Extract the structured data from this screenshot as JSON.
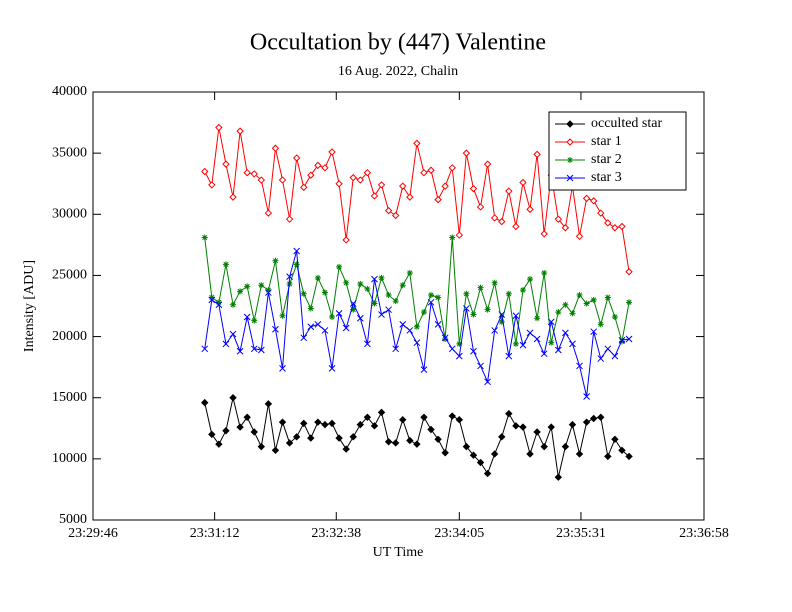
{
  "chart_data": {
    "type": "line",
    "title": "Occultation by (447) Valentine",
    "subtitle": "16 Aug. 2022, Chalin",
    "x_label": "UT Time",
    "y_label": "Intensity [ADU]",
    "x": [
      84665,
      84670,
      84675,
      84680,
      84685,
      84690,
      84695,
      84700,
      84705,
      84710,
      84715,
      84720,
      84725,
      84730,
      84735,
      84740,
      84745,
      84750,
      84755,
      84760,
      84765,
      84770,
      84775,
      84780,
      84785,
      84790,
      84795,
      84800,
      84805,
      84810,
      84815,
      84820,
      84825,
      84830,
      84835,
      84840,
      84845,
      84850,
      84855,
      84860,
      84865,
      84870,
      84875,
      84880,
      84885,
      84890,
      84895,
      84900,
      84905,
      84910,
      84915,
      84920,
      84925,
      84930,
      84935,
      84940,
      84945,
      84950,
      84955,
      84960,
      84965
    ],
    "xlim": [
      84586,
      85018
    ],
    "xticks": [
      {
        "value": 84586,
        "label": "23:29:46"
      },
      {
        "value": 84672,
        "label": "23:31:12"
      },
      {
        "value": 84758,
        "label": "23:32:38"
      },
      {
        "value": 84845,
        "label": "23:34:05"
      },
      {
        "value": 84931,
        "label": "23:35:31"
      },
      {
        "value": 85018,
        "label": "23:36:58"
      }
    ],
    "ylim": [
      5000,
      40000
    ],
    "yticks": [
      5000,
      10000,
      15000,
      20000,
      25000,
      30000,
      35000,
      40000
    ],
    "legend": "upper right",
    "series": [
      {
        "name": "occulted star",
        "color": "#000000",
        "marker": "filled-diamond",
        "values": [
          14600,
          12000,
          11200,
          12300,
          15000,
          12600,
          13400,
          12200,
          11000,
          14500,
          10700,
          13000,
          11300,
          11800,
          12900,
          11700,
          13000,
          12800,
          12900,
          11700,
          10800,
          11800,
          12800,
          13400,
          12700,
          13800,
          11400,
          11300,
          13200,
          11500,
          11200,
          13400,
          12400,
          11600,
          10500,
          13500,
          13200,
          11000,
          10300,
          9700,
          8800,
          10400,
          11800,
          13700,
          12700,
          12600,
          10400,
          12200,
          11000,
          12600,
          8500,
          11000,
          12800,
          10400,
          13000,
          13300,
          13400,
          10200,
          11600,
          10700,
          10200
        ]
      },
      {
        "name": "star 1",
        "color": "#ff0000",
        "marker": "open-diamond",
        "values": [
          33500,
          32400,
          37100,
          34100,
          31400,
          36800,
          33400,
          33300,
          32800,
          30100,
          35400,
          32800,
          29600,
          34600,
          32200,
          33200,
          34000,
          33800,
          35100,
          32500,
          27900,
          33000,
          32800,
          33400,
          31500,
          32400,
          30300,
          29900,
          32300,
          31400,
          35800,
          33400,
          33600,
          31200,
          32300,
          33800,
          28300,
          35000,
          32100,
          30600,
          34100,
          29700,
          29400,
          31900,
          29000,
          32600,
          30400,
          34900,
          28400,
          33200,
          29600,
          28900,
          32300,
          28200,
          31300,
          31100,
          30100,
          29300,
          28900,
          29000,
          25300
        ]
      },
      {
        "name": "star 2",
        "color": "#008000",
        "marker": "asterisk",
        "values": [
          28100,
          23200,
          22800,
          25900,
          22600,
          23700,
          24100,
          21300,
          24200,
          23800,
          26200,
          21700,
          24300,
          25900,
          23500,
          22300,
          24800,
          23600,
          21600,
          25700,
          24400,
          22200,
          24300,
          23900,
          22700,
          24800,
          23400,
          22900,
          24200,
          25200,
          20800,
          22000,
          23400,
          23200,
          19800,
          28100,
          19400,
          23500,
          21800,
          24000,
          22200,
          24400,
          21200,
          23500,
          19400,
          23800,
          24700,
          21500,
          25200,
          19500,
          22000,
          22600,
          21900,
          23400,
          22700,
          23000,
          21000,
          23200,
          21600,
          19600,
          22800
        ]
      },
      {
        "name": "star 3",
        "color": "#0000ff",
        "marker": "cross",
        "values": [
          19000,
          23000,
          22600,
          19400,
          20200,
          18800,
          21600,
          19000,
          18900,
          23600,
          20600,
          17400,
          24900,
          27000,
          19900,
          20800,
          21000,
          20500,
          17400,
          21900,
          20700,
          22700,
          21500,
          19400,
          24700,
          21800,
          22200,
          19000,
          21000,
          20500,
          19500,
          17300,
          22800,
          21000,
          19900,
          19000,
          18400,
          22300,
          18800,
          17600,
          16300,
          20500,
          21800,
          18400,
          21700,
          19300,
          20300,
          19800,
          18600,
          21200,
          18900,
          20300,
          19400,
          17600,
          15100,
          20400,
          18200,
          19000,
          18400,
          19700,
          19800
        ]
      }
    ]
  }
}
